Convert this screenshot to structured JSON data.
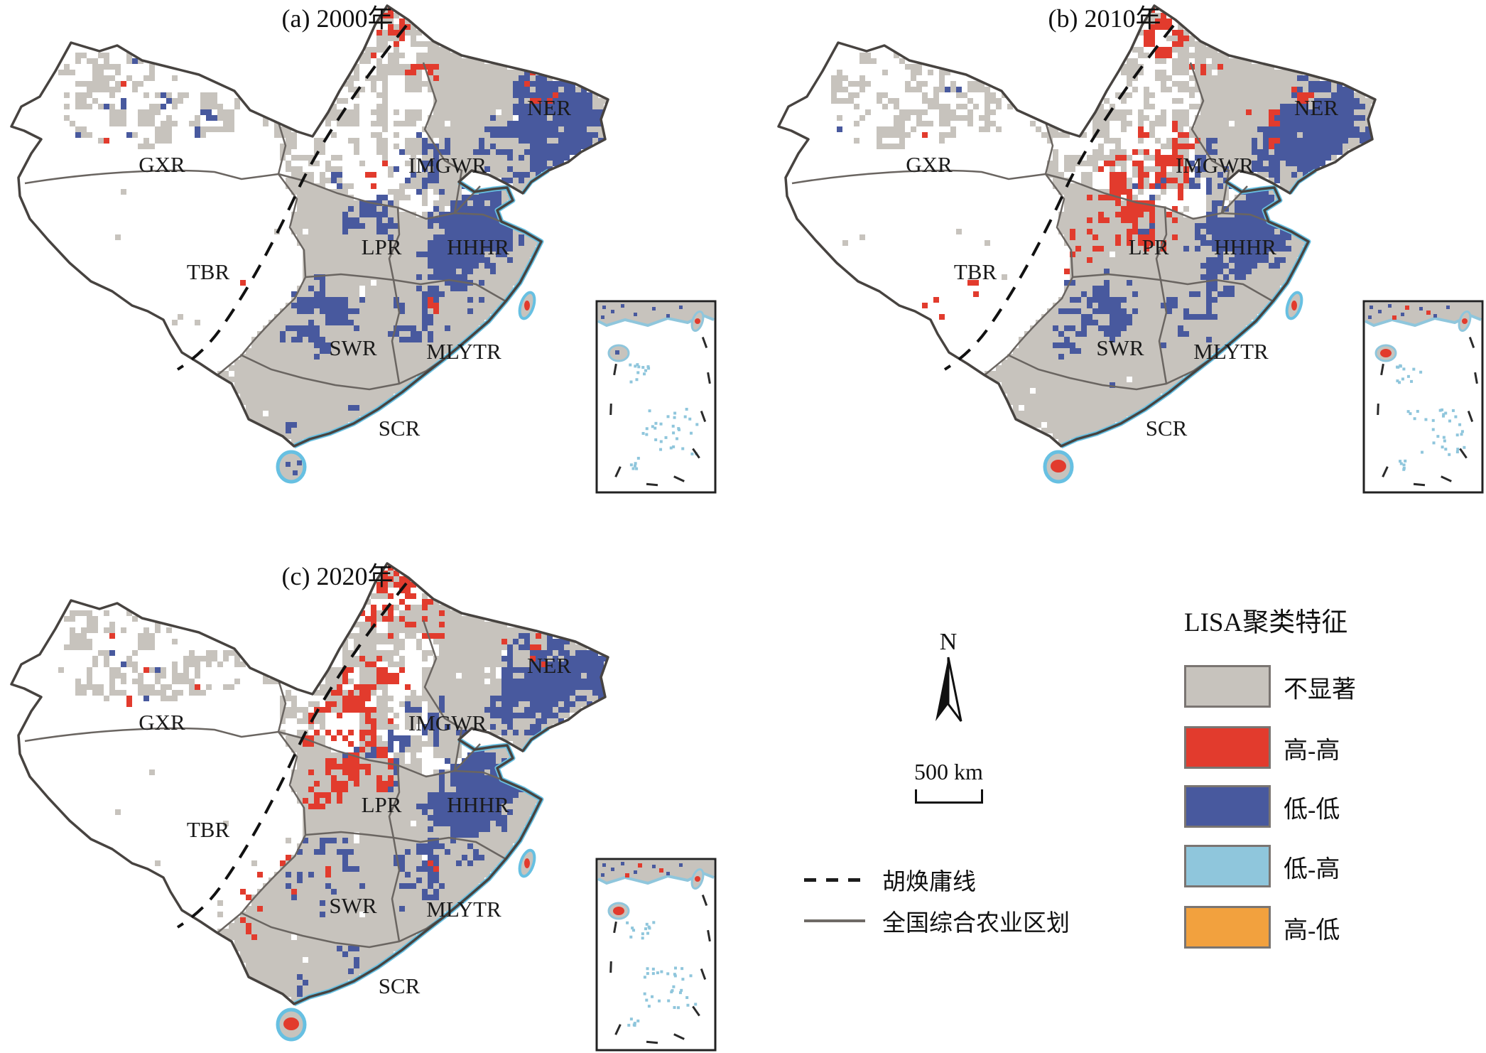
{
  "figure": {
    "panels": [
      {
        "key": "a",
        "title": "(a) 2000年"
      },
      {
        "key": "b",
        "title": "(b) 2010年"
      },
      {
        "key": "c",
        "title": "(c) 2020年"
      }
    ],
    "region_labels": [
      "GXR",
      "TBR",
      "IMGWR",
      "NER",
      "LPR",
      "HHHR",
      "SWR",
      "MLYTR",
      "SCR"
    ],
    "legend": {
      "title": "LISA聚类特征",
      "classes": [
        {
          "name": "not-significant",
          "label": "不显著",
          "color": "#c7c3bd"
        },
        {
          "name": "high-high",
          "label": "高-高",
          "color": "#e23b2d"
        },
        {
          "name": "low-low",
          "label": "低-低",
          "color": "#48599e"
        },
        {
          "name": "low-high",
          "label": "低-高",
          "color": "#8fc6dc"
        },
        {
          "name": "high-low",
          "label": "高-低",
          "color": "#f2a13e"
        }
      ],
      "lines": [
        {
          "name": "hu-line",
          "label": "胡焕庸线",
          "style": "dashed",
          "color": "#1c1c1c"
        },
        {
          "name": "agri-zoning",
          "label": "全国综合农业区划",
          "style": "solid",
          "color": "#6f6a66"
        }
      ],
      "north_label": "N",
      "scale_label": "500 km"
    },
    "map_colors": {
      "outline": "#474340",
      "region_border": "#6a6561",
      "coast": "#67c0e2",
      "hu_line": "#111111",
      "inset_border": "#222222"
    }
  }
}
